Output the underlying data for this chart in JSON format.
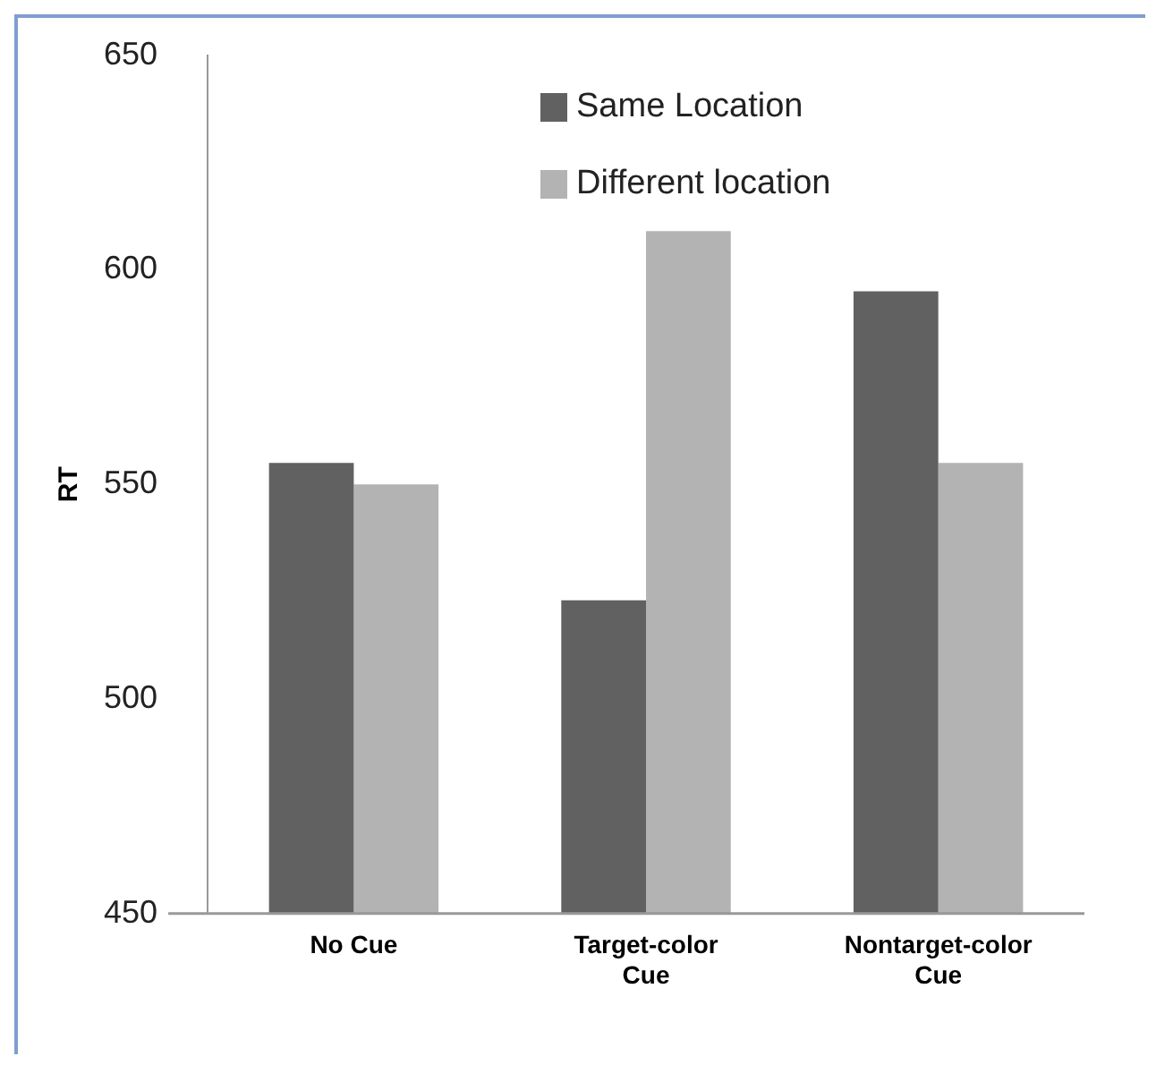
{
  "chart_data": {
    "type": "bar",
    "ylabel": "RT",
    "categories": [
      "No Cue",
      "Target-color Cue",
      "Nontarget-color Cue"
    ],
    "series": [
      {
        "name": "Same Location",
        "color": "#616161",
        "values": [
          555,
          523,
          595
        ]
      },
      {
        "name": "Different location",
        "color": "#b3b3b3",
        "values": [
          550,
          609,
          555
        ]
      }
    ],
    "ylim": [
      450,
      650
    ],
    "yticks": [
      450,
      500,
      550,
      600,
      650
    ],
    "grid": false,
    "legend": "top right"
  }
}
